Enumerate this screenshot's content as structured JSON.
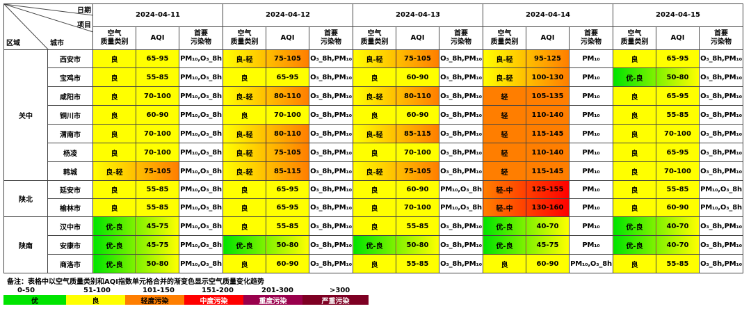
{
  "header": {
    "date_label": "日期",
    "item_label": "项目",
    "region_label": "区域",
    "city_label": "城市",
    "dates": [
      "2024-04-11",
      "2024-04-12",
      "2024-04-13",
      "2024-04-14",
      "2024-04-15"
    ],
    "sub": [
      "空气\n质量类别",
      "AQI",
      "首要\n污染物"
    ]
  },
  "regions": [
    {
      "name": "关中",
      "cities": [
        {
          "name": "西安市",
          "days": [
            [
              "良",
              "65-95",
              "PM₁₀,O₃_8h"
            ],
            [
              "良-轻",
              "75-105",
              "O₃_8h,PM₁₀"
            ],
            [
              "良-轻",
              "75-105",
              "O₃_8h,PM₁₀"
            ],
            [
              "良-轻",
              "95-125",
              "PM₁₀"
            ],
            [
              "良",
              "65-95",
              "O₃_8h,PM₁₀"
            ]
          ]
        },
        {
          "name": "宝鸡市",
          "days": [
            [
              "良",
              "55-85",
              "PM₁₀,O₃_8h"
            ],
            [
              "良",
              "65-95",
              "O₃_8h,PM₁₀"
            ],
            [
              "良",
              "60-90",
              "O₃_8h,PM₁₀"
            ],
            [
              "良-轻",
              "100-130",
              "PM₁₀"
            ],
            [
              "优-良",
              "50-80",
              "O₃_8h,PM₁₀"
            ]
          ]
        },
        {
          "name": "咸阳市",
          "days": [
            [
              "良",
              "70-100",
              "PM₁₀,O₃_8h"
            ],
            [
              "良-轻",
              "80-110",
              "O₃_8h,PM₁₀"
            ],
            [
              "良-轻",
              "80-110",
              "O₃_8h,PM₁₀"
            ],
            [
              "轻",
              "105-135",
              "PM₁₀"
            ],
            [
              "良",
              "65-95",
              "O₃_8h,PM₁₀"
            ]
          ]
        },
        {
          "name": "铜川市",
          "days": [
            [
              "良",
              "60-90",
              "PM₁₀,O₃_8h"
            ],
            [
              "良",
              "70-100",
              "O₃_8h,PM₁₀"
            ],
            [
              "良",
              "60-90",
              "O₃_8h,PM₁₀"
            ],
            [
              "轻",
              "110-140",
              "PM₁₀"
            ],
            [
              "良",
              "55-85",
              "O₃_8h,PM₁₀"
            ]
          ]
        },
        {
          "name": "渭南市",
          "days": [
            [
              "良",
              "70-100",
              "PM₁₀,O₃_8h"
            ],
            [
              "良-轻",
              "80-110",
              "O₃_8h,PM₁₀"
            ],
            [
              "良-轻",
              "85-115",
              "O₃_8h,PM₁₀"
            ],
            [
              "轻",
              "115-145",
              "PM₁₀"
            ],
            [
              "良",
              "70-100",
              "O₃_8h,PM₁₀"
            ]
          ]
        },
        {
          "name": "杨凌",
          "days": [
            [
              "良",
              "70-100",
              "PM₁₀,O₃_8h"
            ],
            [
              "良-轻",
              "75-105",
              "O₃_8h,PM₁₀"
            ],
            [
              "良",
              "70-100",
              "O₃_8h,PM₁₀"
            ],
            [
              "轻",
              "110-140",
              "PM₁₀"
            ],
            [
              "良",
              "65-95",
              "O₃_8h,PM₁₀"
            ]
          ]
        },
        {
          "name": "韩城",
          "days": [
            [
              "良-轻",
              "75-105",
              "PM₁₀,O₃_8h"
            ],
            [
              "良-轻",
              "85-115",
              "O₃_8h,PM₁₀"
            ],
            [
              "良-轻",
              "75-105",
              "O₃_8h,PM₁₀"
            ],
            [
              "轻",
              "115-145",
              "PM₁₀"
            ],
            [
              "良",
              "70-100",
              "O₃_8h,PM₁₀"
            ]
          ]
        }
      ]
    },
    {
      "name": "陕北",
      "cities": [
        {
          "name": "延安市",
          "days": [
            [
              "良",
              "55-85",
              "PM₁₀,O₃_8h"
            ],
            [
              "良",
              "65-95",
              "O₃_8h,PM₁₀"
            ],
            [
              "良",
              "60-90",
              "PM₁₀,O₃_8h"
            ],
            [
              "轻-中",
              "125-155",
              "PM₁₀"
            ],
            [
              "良",
              "55-85",
              "PM₁₀,O₃_8h"
            ]
          ]
        },
        {
          "name": "榆林市",
          "days": [
            [
              "良",
              "55-85",
              "PM₁₀,O₃_8h"
            ],
            [
              "良",
              "65-95",
              "O₃_8h,PM₁₀"
            ],
            [
              "良",
              "70-100",
              "PM₁₀,O₃_8h"
            ],
            [
              "轻-中",
              "130-160",
              "PM₁₀"
            ],
            [
              "良",
              "60-90",
              "PM₁₀,O₃_8h"
            ]
          ]
        }
      ]
    },
    {
      "name": "陕南",
      "cities": [
        {
          "name": "汉中市",
          "days": [
            [
              "优-良",
              "45-75",
              "PM₁₀,O₃_8h"
            ],
            [
              "良",
              "55-85",
              "O₃_8h,PM₁₀"
            ],
            [
              "良",
              "55-85",
              "O₃_8h,PM₁₀"
            ],
            [
              "优-良",
              "40-70",
              "PM₁₀"
            ],
            [
              "优-良",
              "40-70",
              "O₃_8h,PM₁₀"
            ]
          ]
        },
        {
          "name": "安康市",
          "days": [
            [
              "优-良",
              "45-75",
              "PM₁₀,O₃_8h"
            ],
            [
              "优-良",
              "50-80",
              "O₃_8h,PM₁₀"
            ],
            [
              "优-良",
              "50-80",
              "O₃_8h,PM₁₀"
            ],
            [
              "优-良",
              "45-75",
              "PM₁₀"
            ],
            [
              "优-良",
              "40-70",
              "O₃_8h,PM₁₀"
            ]
          ]
        },
        {
          "name": "商洛市",
          "days": [
            [
              "优-良",
              "50-80",
              "PM₁₀,O₃_8h"
            ],
            [
              "良",
              "60-90",
              "O₃_8h,PM₁₀"
            ],
            [
              "良",
              "55-85",
              "O₃_8h,PM₁₀"
            ],
            [
              "良",
              "60-90",
              "PM₁₀,O₃_8h"
            ],
            [
              "良",
              "55-85",
              "O₃_8h,PM₁₀"
            ]
          ]
        }
      ]
    }
  ],
  "notes": "备注：表格中以空气质量类别和AQI指数单元格合并的渐变色显示空气质量变化趋势",
  "scale": [
    "0-50",
    "51-100",
    "101-150",
    "151-200",
    "201-300",
    ">300"
  ],
  "legend": [
    {
      "label": "优",
      "color": "#00e400",
      "text": "#000000"
    },
    {
      "label": "良",
      "color": "#ffff00",
      "text": "#000000"
    },
    {
      "label": "轻度污染",
      "color": "#ff7e00",
      "text": "#000000"
    },
    {
      "label": "中度污染",
      "color": "#ff0000",
      "text": "#ffffff"
    },
    {
      "label": "重度污染",
      "color": "#99004c",
      "text": "#ffffff"
    },
    {
      "label": "严重污染",
      "color": "#7e0023",
      "text": "#ffffff"
    }
  ],
  "colors": {
    "good": "#ffff00",
    "excellent": "#00e400",
    "light": "#ff7e00",
    "moderate": "#ff0000"
  }
}
